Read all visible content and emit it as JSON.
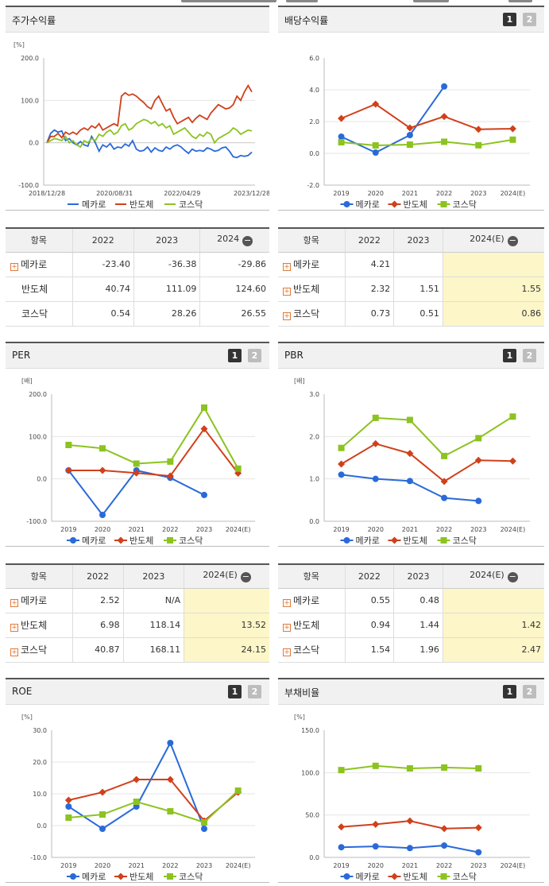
{
  "panels": {
    "p1": {
      "title": "주가수익률"
    },
    "p2": {
      "title": "배당수익률",
      "btn1": "1",
      "btn2": "2"
    },
    "p3": {
      "title": "PER",
      "btn1": "1",
      "btn2": "2"
    },
    "p4": {
      "title": "PBR",
      "btn1": "1",
      "btn2": "2"
    },
    "p5": {
      "title": "ROE",
      "btn1": "1",
      "btn2": "2"
    },
    "p6": {
      "title": "부채비율",
      "btn1": "1",
      "btn2": "2"
    }
  },
  "colors": {
    "s1": "#2a6ad8",
    "s2": "#d0401b",
    "s3": "#8cc320"
  },
  "legend": [
    "메카로",
    "반도체",
    "코스닥"
  ],
  "tables": {
    "t1": {
      "headers": [
        "항목",
        "2022",
        "2023",
        "2024"
      ],
      "rows": [
        {
          "label": "메카로",
          "plus": true,
          "values": [
            "-23.40",
            "-36.38",
            "-29.86"
          ]
        },
        {
          "label": "반도체",
          "plus": false,
          "values": [
            "40.74",
            "111.09",
            "124.60"
          ]
        },
        {
          "label": "코스닥",
          "plus": false,
          "values": [
            "0.54",
            "28.26",
            "26.55"
          ]
        }
      ]
    },
    "t2": {
      "headers": [
        "항목",
        "2022",
        "2023",
        "2024(E)"
      ],
      "rows": [
        {
          "label": "메카로",
          "plus": true,
          "values": [
            "4.21",
            "",
            ""
          ]
        },
        {
          "label": "반도체",
          "plus": true,
          "values": [
            "2.32",
            "1.51",
            "1.55"
          ]
        },
        {
          "label": "코스닥",
          "plus": true,
          "values": [
            "0.73",
            "0.51",
            "0.86"
          ]
        }
      ]
    },
    "t3": {
      "headers": [
        "항목",
        "2022",
        "2023",
        "2024(E)"
      ],
      "rows": [
        {
          "label": "메카로",
          "plus": true,
          "values": [
            "2.52",
            "N/A",
            ""
          ]
        },
        {
          "label": "반도체",
          "plus": true,
          "values": [
            "6.98",
            "118.14",
            "13.52"
          ]
        },
        {
          "label": "코스닥",
          "plus": true,
          "values": [
            "40.87",
            "168.11",
            "24.15"
          ]
        }
      ]
    },
    "t4": {
      "headers": [
        "항목",
        "2022",
        "2023",
        "2024(E)"
      ],
      "rows": [
        {
          "label": "메카로",
          "plus": true,
          "values": [
            "0.55",
            "0.48",
            ""
          ]
        },
        {
          "label": "반도체",
          "plus": true,
          "values": [
            "0.94",
            "1.44",
            "1.42"
          ]
        },
        {
          "label": "코스닥",
          "plus": true,
          "values": [
            "1.54",
            "1.96",
            "2.47"
          ]
        }
      ]
    }
  },
  "chart_data": [
    {
      "id": "c1",
      "type": "line",
      "title": "주가수익률",
      "ylabel": "[%]",
      "ylim": [
        -100,
        200
      ],
      "yticks": [
        "200.0",
        "100.0",
        "0.0",
        "-100.0"
      ],
      "xticks": [
        "2018/12/28",
        "2020/08/31",
        "2022/04/29",
        "2023/12/28"
      ],
      "series": [
        {
          "name": "메카로",
          "values": [
            0,
            22,
            30,
            25,
            28,
            5,
            10,
            0,
            -5,
            3,
            -5,
            -8,
            15,
            0,
            -20,
            -5,
            -10,
            -2,
            -15,
            -10,
            -12,
            -3,
            -8,
            5,
            -15,
            -20,
            -18,
            -10,
            -22,
            -12,
            -18,
            -20,
            -10,
            -15,
            -8,
            -5,
            -10,
            -18,
            -25,
            -15,
            -20,
            -18,
            -20,
            -12,
            -15,
            -20,
            -18,
            -12,
            -10,
            -20,
            -33,
            -35,
            -30,
            -32,
            -30,
            -22
          ]
        },
        {
          "name": "반도체",
          "values": [
            0,
            15,
            15,
            22,
            12,
            25,
            20,
            25,
            20,
            30,
            35,
            30,
            40,
            35,
            45,
            30,
            35,
            40,
            45,
            40,
            110,
            118,
            112,
            115,
            110,
            102,
            95,
            85,
            80,
            100,
            110,
            92,
            75,
            80,
            60,
            45,
            50,
            55,
            60,
            48,
            58,
            65,
            60,
            55,
            70,
            80,
            90,
            85,
            80,
            82,
            90,
            110,
            100,
            120,
            135,
            120
          ]
        },
        {
          "name": "코스닥",
          "values": [
            0,
            5,
            10,
            8,
            5,
            15,
            0,
            5,
            -5,
            -10,
            5,
            0,
            10,
            5,
            20,
            15,
            25,
            30,
            20,
            25,
            40,
            45,
            30,
            35,
            45,
            50,
            55,
            52,
            45,
            50,
            40,
            45,
            35,
            40,
            20,
            25,
            30,
            35,
            25,
            15,
            10,
            20,
            15,
            25,
            20,
            0,
            10,
            15,
            20,
            25,
            35,
            30,
            20,
            25,
            30,
            28
          ]
        }
      ]
    },
    {
      "id": "c2",
      "type": "line",
      "title": "배당수익률",
      "ylabel": "",
      "ylim": [
        -2,
        6
      ],
      "yticks": [
        "6.0",
        "4.0",
        "2.0",
        "0.0",
        "-2.0"
      ],
      "categories": [
        "2019",
        "2020",
        "2021",
        "2022",
        "2023",
        "2024(E)"
      ],
      "series": [
        {
          "name": "메카로",
          "values": [
            1.05,
            0.05,
            1.15,
            4.21,
            null,
            null
          ]
        },
        {
          "name": "반도체",
          "values": [
            2.2,
            3.1,
            1.6,
            2.32,
            1.51,
            1.55
          ]
        },
        {
          "name": "코스닥",
          "values": [
            0.7,
            0.5,
            0.55,
            0.73,
            0.51,
            0.86
          ]
        }
      ]
    },
    {
      "id": "c3",
      "type": "line",
      "title": "PER",
      "ylabel": "[배]",
      "ylim": [
        -100,
        200
      ],
      "yticks": [
        "200.0",
        "100.0",
        "0.0",
        "-100.0"
      ],
      "categories": [
        "2019",
        "2020",
        "2021",
        "2022",
        "2023",
        "2024(E)"
      ],
      "series": [
        {
          "name": "메카로",
          "values": [
            20,
            -85,
            20,
            2.52,
            -38,
            null
          ]
        },
        {
          "name": "반도체",
          "values": [
            20,
            20,
            14,
            6.98,
            118.14,
            13.52
          ]
        },
        {
          "name": "코스닥",
          "values": [
            80,
            72,
            36,
            40.87,
            168.11,
            24.15
          ]
        }
      ]
    },
    {
      "id": "c4",
      "type": "line",
      "title": "PBR",
      "ylabel": "[배]",
      "ylim": [
        0,
        3
      ],
      "yticks": [
        "3.0",
        "2.0",
        "1.0",
        "0.0"
      ],
      "categories": [
        "2019",
        "2020",
        "2021",
        "2022",
        "2023",
        "2024(E)"
      ],
      "series": [
        {
          "name": "메카로",
          "values": [
            1.1,
            1.0,
            0.95,
            0.55,
            0.48,
            null
          ]
        },
        {
          "name": "반도체",
          "values": [
            1.35,
            1.83,
            1.6,
            0.94,
            1.44,
            1.42
          ]
        },
        {
          "name": "코스닥",
          "values": [
            1.73,
            2.44,
            2.39,
            1.54,
            1.96,
            2.47
          ]
        }
      ]
    },
    {
      "id": "c5",
      "type": "line",
      "title": "ROE",
      "ylabel": "[%]",
      "ylim": [
        -10,
        30
      ],
      "yticks": [
        "30.0",
        "20.0",
        "10.0",
        "0.0",
        "-10.0"
      ],
      "categories": [
        "2019",
        "2020",
        "2021",
        "2022",
        "2023",
        "2024(E)"
      ],
      "series": [
        {
          "name": "메카로",
          "values": [
            6,
            -1,
            6,
            26,
            -1,
            null
          ]
        },
        {
          "name": "반도체",
          "values": [
            8,
            10.5,
            14.5,
            14.5,
            1.5,
            10.5
          ]
        },
        {
          "name": "코스닥",
          "values": [
            2.5,
            3.5,
            7.5,
            4.5,
            1.0,
            11
          ]
        }
      ]
    },
    {
      "id": "c6",
      "type": "line",
      "title": "부채비율",
      "ylabel": "[%]",
      "ylim": [
        0,
        150
      ],
      "yticks": [
        "150.0",
        "100.0",
        "50.0",
        "0.0"
      ],
      "categories": [
        "2019",
        "2020",
        "2021",
        "2022",
        "2023",
        "2024(E)"
      ],
      "series": [
        {
          "name": "메카로",
          "values": [
            12,
            13,
            11,
            14,
            6,
            null
          ]
        },
        {
          "name": "반도체",
          "values": [
            36,
            39,
            43,
            34,
            35,
            null
          ]
        },
        {
          "name": "코스닥",
          "values": [
            103,
            108,
            105,
            106,
            105,
            null
          ]
        }
      ]
    }
  ]
}
